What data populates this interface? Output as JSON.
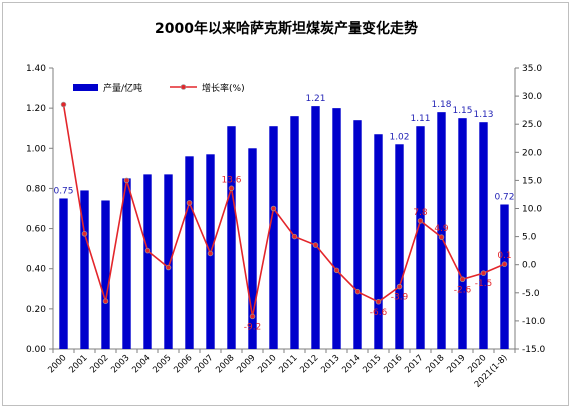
{
  "chart_data": {
    "type": "bar",
    "title": "2000年以来哈萨克斯坦煤炭产量变化走势",
    "categories": [
      "2000",
      "2001",
      "2002",
      "2003",
      "2004",
      "2005",
      "2006",
      "2007",
      "2008",
      "2009",
      "2010",
      "2011",
      "2012",
      "2013",
      "2014",
      "2015",
      "2016",
      "2017",
      "2018",
      "2019",
      "2020",
      "2021(1-8)"
    ],
    "series": [
      {
        "name": "产量/亿吨",
        "type": "bar",
        "axis": "left",
        "color": "#0000cc",
        "values": [
          0.75,
          0.79,
          0.74,
          0.85,
          0.87,
          0.87,
          0.96,
          0.97,
          1.11,
          1.0,
          1.11,
          1.16,
          1.21,
          1.2,
          1.14,
          1.07,
          1.02,
          1.11,
          1.18,
          1.15,
          1.13,
          0.72
        ],
        "labels": [
          "0.75",
          "",
          "",
          "",
          "",
          "",
          "",
          "",
          "",
          "",
          "",
          "",
          "1.21",
          "",
          "",
          "",
          "1.02",
          "1.11",
          "1.18",
          "1.15",
          "1.13",
          "0.72"
        ]
      },
      {
        "name": "增长率(%)",
        "type": "line",
        "axis": "right",
        "color": "#e3262b",
        "values": [
          28.5,
          5.5,
          -6.5,
          15.0,
          2.5,
          -0.5,
          11.0,
          2.0,
          13.6,
          -9.2,
          10.0,
          5.0,
          3.5,
          -1.0,
          -4.8,
          -6.6,
          -3.9,
          7.8,
          4.9,
          -2.6,
          -1.5,
          0.1
        ],
        "labels": [
          "",
          "",
          "",
          "",
          "",
          "",
          "",
          "",
          "13.6",
          "-9.2",
          "",
          "",
          "",
          "",
          "",
          "-6.6",
          "-3.9",
          "7.8",
          "4.9",
          "-2.6",
          "-1.5",
          "0.1"
        ]
      }
    ],
    "y_left": {
      "min": 0,
      "max": 1.4,
      "step": 0.2,
      "tick_labels": [
        "0.00",
        "0.20",
        "0.40",
        "0.60",
        "0.80",
        "1.00",
        "1.20",
        "1.40"
      ]
    },
    "y_right": {
      "min": -15,
      "max": 35,
      "step": 5,
      "tick_labels": [
        "-15.0",
        "-10.0",
        "-5.0",
        "0.0",
        "5.0",
        "10.0",
        "15.0",
        "20.0",
        "25.0",
        "30.0",
        "35.0"
      ]
    },
    "legend": {
      "placement": "top-left",
      "entries": [
        "产量/亿吨",
        "增长率(%)"
      ]
    },
    "grid": false
  }
}
